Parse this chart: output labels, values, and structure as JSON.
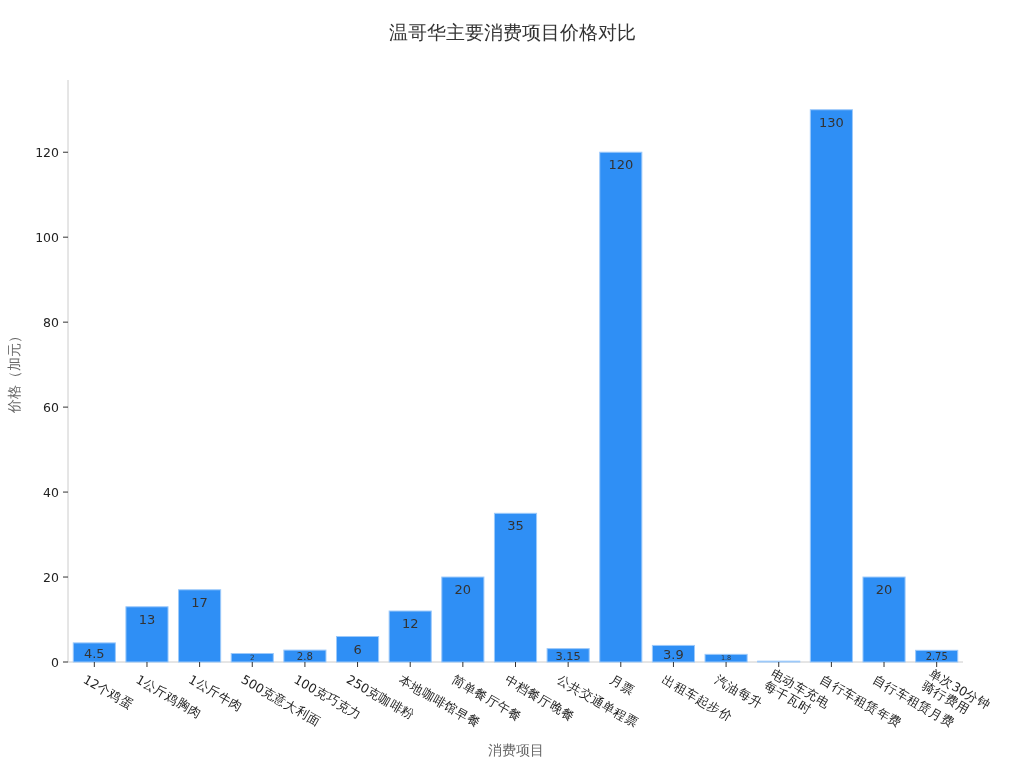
{
  "chart_data": {
    "type": "bar",
    "title": "温哥华主要消费项目价格对比",
    "xlabel": "消费项目",
    "ylabel": "价格（加元）",
    "categories": [
      "12个鸡蛋",
      "1公斤鸡胸肉",
      "1公斤牛肉",
      "500克意大利面",
      "100克巧克力",
      "250克咖啡粉",
      "本地咖啡馆早餐",
      "简单餐厅午餐",
      "中档餐厅晚餐",
      "公共交通单程票",
      "月票",
      "出租车起步价",
      "汽油每升",
      "电动车充电\n每千瓦时",
      "自行车租赁年费",
      "自行车租赁月费",
      "单次30分钟\n骑行费用"
    ],
    "values": [
      4.5,
      13,
      17,
      2,
      2.8,
      6,
      12,
      20,
      35,
      3.15,
      120,
      3.9,
      1.8,
      0.2,
      130,
      20,
      2.75
    ],
    "value_labels": [
      "4.5",
      "13",
      "17",
      "2",
      "2.8",
      "6",
      "12",
      "20",
      "35",
      "3.15",
      "120",
      "3.9",
      "1.8",
      null,
      "130",
      "20",
      "2.75"
    ],
    "color": "#2f8ff5",
    "ylim": [
      0,
      137
    ],
    "yticks": [
      0,
      20,
      40,
      60,
      80,
      100,
      120
    ]
  }
}
